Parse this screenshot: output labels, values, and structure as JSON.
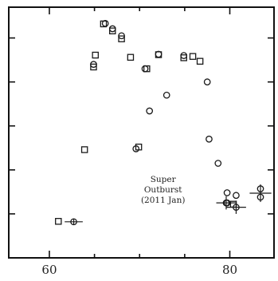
{
  "chart_data": {
    "type": "scatter",
    "xlim": [
      55.5,
      84.9
    ],
    "ylim": [
      0,
      5.7
    ],
    "x_ticks": [
      60,
      80
    ],
    "x_ticks_minor": [
      55,
      65,
      70,
      75,
      85
    ],
    "y_ticks": [
      1,
      2,
      3,
      4,
      5
    ],
    "show_y_tick_labels": false,
    "grid": false,
    "legend": "none",
    "annotation": {
      "lines": [
        "Super",
        "Outburst",
        "(2011 Jan)"
      ],
      "x": 72.6,
      "y_top": 1.72
    },
    "series": [
      {
        "marker": "square",
        "points": [
          {
            "x": 61.0,
            "y": 0.83
          },
          {
            "x": 63.9,
            "y": 2.46
          },
          {
            "x": 64.9,
            "y": 4.34
          },
          {
            "x": 65.1,
            "y": 4.61
          },
          {
            "x": 66.0,
            "y": 5.32
          },
          {
            "x": 67.0,
            "y": 5.16
          },
          {
            "x": 68.0,
            "y": 4.98
          },
          {
            "x": 69.0,
            "y": 4.56
          },
          {
            "x": 69.9,
            "y": 2.52
          },
          {
            "x": 70.8,
            "y": 4.3
          },
          {
            "x": 72.1,
            "y": 4.62
          },
          {
            "x": 74.9,
            "y": 4.55
          },
          {
            "x": 75.9,
            "y": 4.58
          },
          {
            "x": 76.7,
            "y": 4.47
          },
          {
            "x": 80.4,
            "y": 1.22
          }
        ]
      },
      {
        "marker": "circle",
        "points": [
          {
            "x": 62.7,
            "y": 0.82
          },
          {
            "x": 64.9,
            "y": 4.4
          },
          {
            "x": 66.2,
            "y": 5.33
          },
          {
            "x": 67.0,
            "y": 5.21
          },
          {
            "x": 68.0,
            "y": 5.05
          },
          {
            "x": 69.6,
            "y": 2.48
          },
          {
            "x": 70.6,
            "y": 4.3
          },
          {
            "x": 71.1,
            "y": 3.34
          },
          {
            "x": 72.1,
            "y": 4.63
          },
          {
            "x": 73.0,
            "y": 3.7
          },
          {
            "x": 74.9,
            "y": 4.6
          },
          {
            "x": 77.5,
            "y": 4.0
          },
          {
            "x": 77.7,
            "y": 2.7
          },
          {
            "x": 78.7,
            "y": 2.15
          },
          {
            "x": 79.6,
            "y": 1.25
          },
          {
            "x": 79.7,
            "y": 1.48
          },
          {
            "x": 79.7,
            "y": 1.25
          },
          {
            "x": 80.7,
            "y": 1.42
          },
          {
            "x": 80.7,
            "y": 1.15
          },
          {
            "x": 83.4,
            "y": 1.38
          },
          {
            "x": 83.4,
            "y": 1.57
          }
        ]
      }
    ],
    "error_bars": [
      {
        "x": 62.7,
        "y": 0.82,
        "xerr": 1.0,
        "yerr": 0.07
      },
      {
        "x": 79.6,
        "y": 1.25,
        "xerr": 1.1,
        "yerr": 0.15
      },
      {
        "x": 80.7,
        "y": 1.15,
        "xerr": 1.1,
        "yerr": 0.15
      },
      {
        "x": 83.4,
        "y": 1.47,
        "xerr": 1.2,
        "yerr": 0.2
      }
    ]
  }
}
